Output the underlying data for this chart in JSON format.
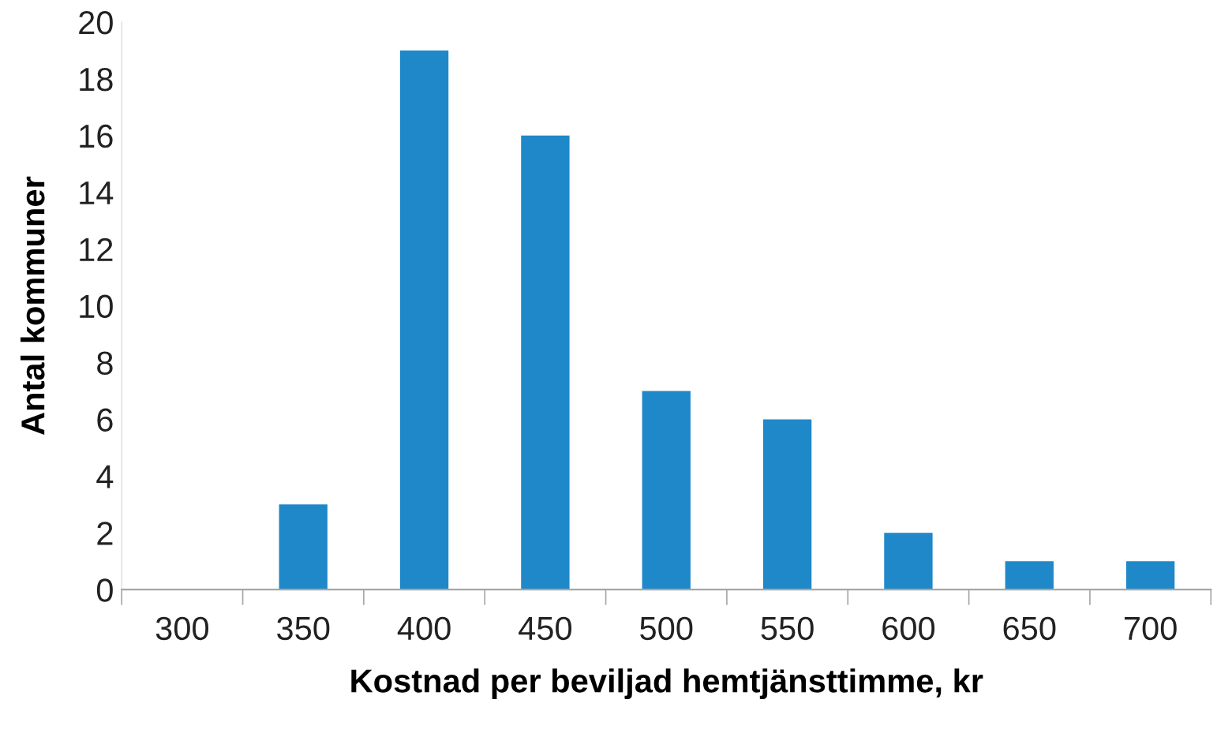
{
  "chart_data": {
    "type": "bar",
    "xlabel": "Kostnad per beviljad hemtjänsttimme, kr",
    "ylabel": "Antal kommuner",
    "categories": [
      "300",
      "350",
      "400",
      "450",
      "500",
      "550",
      "600",
      "650",
      "700"
    ],
    "values": [
      0,
      3,
      19,
      16,
      7,
      6,
      2,
      1,
      1
    ],
    "color": "#1f88c9",
    "ylim": [
      0,
      20
    ],
    "yticks": [
      0,
      2,
      4,
      6,
      8,
      10,
      12,
      14,
      16,
      18,
      20
    ],
    "grid": false,
    "legend": false
  }
}
